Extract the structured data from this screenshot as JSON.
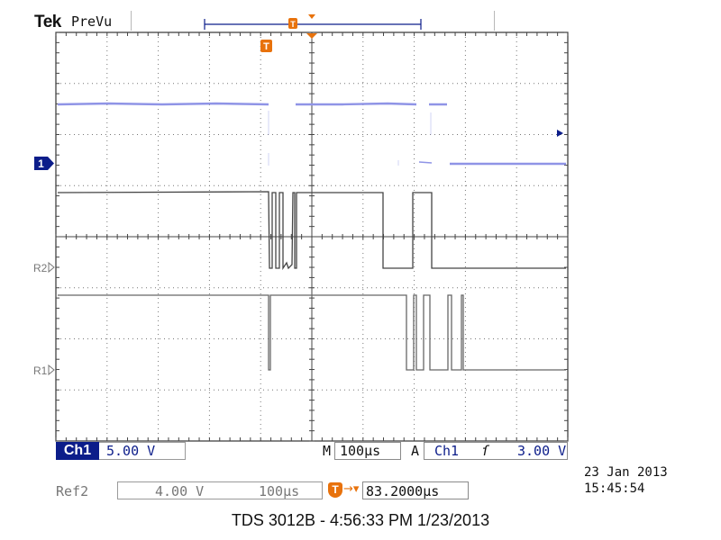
{
  "header": {
    "brand": "Tek",
    "mode": "PreVu",
    "trigger_marker_label": "T"
  },
  "markers": {
    "ch1": "1",
    "ref2": "R2",
    "ref1": "R1",
    "trigger_position": "T"
  },
  "status": {
    "channel_tag": "Ch1",
    "channel_scale": "5.00 V",
    "timebase_prefix": "M",
    "timebase": "100µs",
    "trigger_prefix": "A",
    "trigger_source": "Ch1",
    "trigger_slope": "ſ",
    "trigger_level": "3.00 V"
  },
  "reference": {
    "label": "Ref2",
    "volts_per_div": "4.00 V",
    "time_per_div": "100µs",
    "offset_icon": "T",
    "offset_arrow": "→▾",
    "offset_value": "83.2000µs"
  },
  "clock": {
    "date": "23 Jan  2013",
    "time": "15:45:54"
  },
  "caption": "TDS 3012B - 4:56:33 PM   1/23/2013",
  "colors": {
    "ch1_trace": "#8f94e6",
    "ref_trace": "#444444",
    "trigger_orange": "#e8720c",
    "channel_blue": "#0c1d8a"
  }
}
